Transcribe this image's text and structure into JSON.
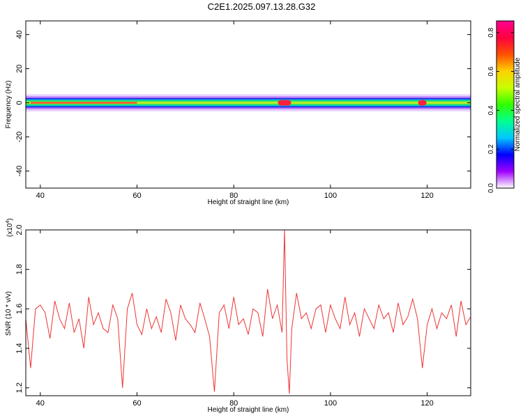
{
  "title": "C2E1.2025.097.13.28.G32",
  "chart_data": [
    {
      "type": "heatmap",
      "xlabel": "Height of straight line (km)",
      "ylabel": "Frequency (Hz)",
      "xlim": [
        37,
        129
      ],
      "ylim": [
        -50,
        48
      ],
      "xticks": [
        "40",
        "60",
        "80",
        "100",
        "120"
      ],
      "xtick_values": [
        40,
        60,
        80,
        100,
        120
      ],
      "yticks": [
        "40",
        "20",
        "0",
        "-20",
        "-40"
      ],
      "ytick_values": [
        40,
        20,
        0,
        -20,
        -40
      ],
      "band_center_hz": 0,
      "band_halfwidth_hz": 5,
      "hotspots_km": [
        90,
        91,
        119
      ],
      "colorbar": {
        "label": "Normalized spectral amplitude",
        "range": [
          0,
          0.86
        ],
        "ticks": [
          "0.0",
          "0.2",
          "0.4",
          "0.6",
          "0.8"
        ],
        "tick_values": [
          0.0,
          0.2,
          0.4,
          0.6,
          0.8
        ],
        "colors": [
          "#ffffff",
          "#a000ff",
          "#0000ff",
          "#00c8ff",
          "#00ff90",
          "#30ff00",
          "#c8ff00",
          "#ffd000",
          "#ff5000",
          "#ff0040",
          "#ff0090"
        ]
      }
    },
    {
      "type": "line",
      "xlabel": "Height of straight line (km)",
      "ylabel": "SNR (10 * v/v)",
      "y_multiplier": "(x10",
      "y_multiplier_exp": "4",
      "xlim": [
        37,
        129
      ],
      "ylim": [
        1.16,
        2.0
      ],
      "xticks": [
        "40",
        "60",
        "80",
        "100",
        "120"
      ],
      "xtick_values": [
        40,
        60,
        80,
        100,
        120
      ],
      "yticks": [
        "2.0",
        "1.8",
        "1.6",
        "1.4",
        "1.2"
      ],
      "ytick_values": [
        2.0,
        1.8,
        1.6,
        1.4,
        1.2
      ],
      "color": "#ee3333",
      "series": [
        {
          "x": [
            37,
            38,
            39,
            40,
            41,
            42,
            43,
            44,
            45,
            46,
            47,
            48,
            49,
            50,
            51,
            52,
            53,
            54,
            55,
            56,
            57,
            58,
            59,
            60,
            61,
            62,
            63,
            64,
            65,
            66,
            67,
            68,
            69,
            70,
            71,
            72,
            73,
            74,
            75,
            76,
            77,
            78,
            79,
            80,
            81,
            82,
            83,
            84,
            85,
            86,
            87,
            88,
            89,
            90,
            90.5,
            91,
            91.5,
            92,
            93,
            94,
            95,
            96,
            97,
            98,
            99,
            100,
            101,
            102,
            103,
            104,
            105,
            106,
            107,
            108,
            109,
            110,
            111,
            112,
            113,
            114,
            115,
            116,
            117,
            118,
            119,
            120,
            121,
            122,
            123,
            124,
            125,
            126,
            127,
            128,
            129
          ],
          "values": [
            1.55,
            1.3,
            1.6,
            1.62,
            1.58,
            1.45,
            1.64,
            1.55,
            1.5,
            1.63,
            1.48,
            1.55,
            1.4,
            1.66,
            1.52,
            1.58,
            1.5,
            1.48,
            1.62,
            1.55,
            1.2,
            1.6,
            1.68,
            1.52,
            1.47,
            1.6,
            1.5,
            1.56,
            1.48,
            1.65,
            1.58,
            1.44,
            1.62,
            1.55,
            1.52,
            1.48,
            1.63,
            1.55,
            1.46,
            1.18,
            1.58,
            1.62,
            1.5,
            1.66,
            1.52,
            1.55,
            1.47,
            1.6,
            1.58,
            1.46,
            1.7,
            1.55,
            1.62,
            1.48,
            2.0,
            1.35,
            1.17,
            1.5,
            1.68,
            1.55,
            1.58,
            1.5,
            1.6,
            1.62,
            1.48,
            1.62,
            1.55,
            1.5,
            1.66,
            1.52,
            1.58,
            1.46,
            1.6,
            1.55,
            1.5,
            1.62,
            1.55,
            1.58,
            1.48,
            1.63,
            1.52,
            1.56,
            1.65,
            1.55,
            1.3,
            1.52,
            1.6,
            1.5,
            1.58,
            1.55,
            1.62,
            1.46,
            1.64,
            1.52,
            1.56
          ]
        }
      ]
    }
  ]
}
